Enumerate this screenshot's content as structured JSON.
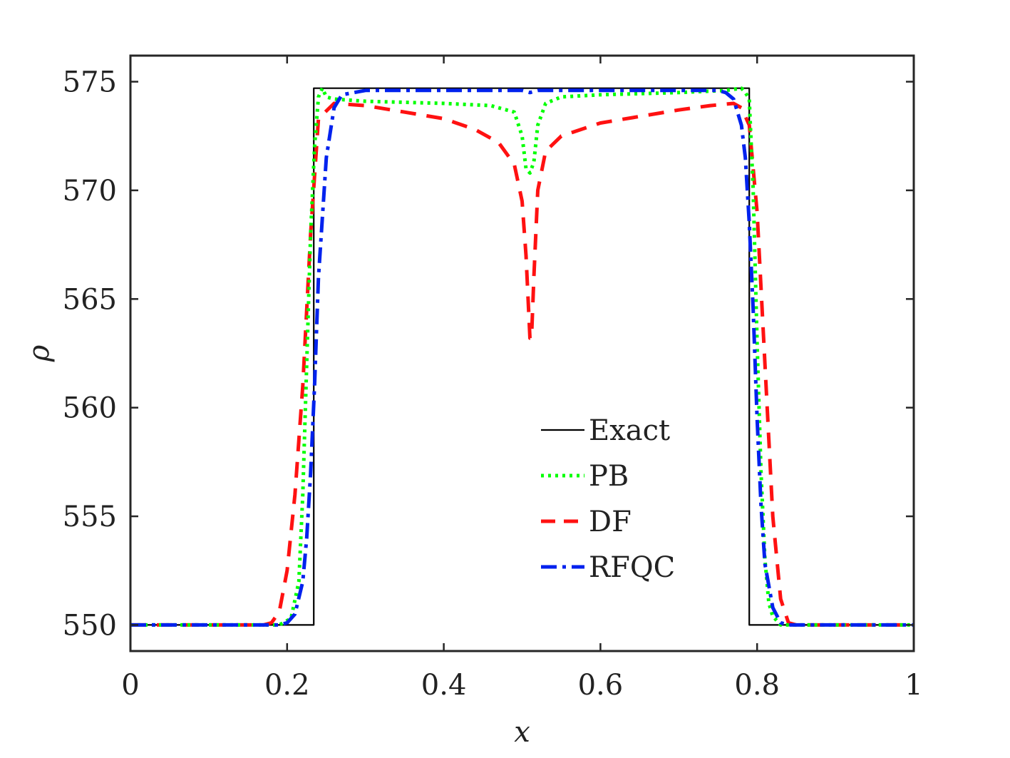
{
  "chart_data": {
    "type": "line",
    "title": "",
    "xlabel": "x",
    "ylabel": "ρ",
    "xlim": [
      0,
      1
    ],
    "ylim": [
      548.8,
      576.2
    ],
    "xticks": [
      0,
      0.2,
      0.4,
      0.6,
      0.8,
      1
    ],
    "xtick_labels": [
      "0",
      "0.2",
      "0.4",
      "0.6",
      "0.8",
      "1"
    ],
    "yticks": [
      550,
      555,
      560,
      565,
      570,
      575
    ],
    "ytick_labels": [
      "550",
      "555",
      "560",
      "565",
      "570",
      "575"
    ],
    "grid": false,
    "legend_position": "center-right",
    "series": [
      {
        "name": "Exact",
        "color": "#000000",
        "style": "solid",
        "x": [
          0,
          0.234,
          0.234,
          0.79,
          0.79,
          1
        ],
        "y": [
          550,
          550,
          574.7,
          574.7,
          550,
          550
        ]
      },
      {
        "name": "PB",
        "color": "#00ff00",
        "style": "dotted",
        "x": [
          0,
          0.19,
          0.205,
          0.215,
          0.22,
          0.225,
          0.23,
          0.235,
          0.24,
          0.245,
          0.25,
          0.26,
          0.3,
          0.4,
          0.46,
          0.49,
          0.5,
          0.505,
          0.51,
          0.515,
          0.52,
          0.53,
          0.55,
          0.6,
          0.7,
          0.76,
          0.78,
          0.785,
          0.79,
          0.795,
          0.8,
          0.805,
          0.81,
          0.815,
          0.82,
          0.83,
          1
        ],
        "y": [
          550,
          550,
          550.3,
          552,
          556,
          562,
          568,
          572,
          574.3,
          574.7,
          574.3,
          574.2,
          574.1,
          574.0,
          573.9,
          573.6,
          572.5,
          571.0,
          570.8,
          571.3,
          573.0,
          574.0,
          574.3,
          574.4,
          574.5,
          574.6,
          574.7,
          574.5,
          574.2,
          570,
          563,
          557,
          553,
          551,
          550.4,
          550,
          550
        ]
      },
      {
        "name": "DF",
        "color": "#ff1111",
        "style": "dashed",
        "x": [
          0,
          0.17,
          0.18,
          0.19,
          0.2,
          0.21,
          0.22,
          0.23,
          0.24,
          0.26,
          0.3,
          0.35,
          0.4,
          0.44,
          0.47,
          0.49,
          0.5,
          0.505,
          0.51,
          0.512,
          0.515,
          0.52,
          0.53,
          0.55,
          0.6,
          0.65,
          0.7,
          0.74,
          0.77,
          0.78,
          0.79,
          0.8,
          0.81,
          0.82,
          0.83,
          0.84,
          0.85,
          0.86,
          1
        ],
        "y": [
          550,
          550,
          550.1,
          550.6,
          552.5,
          556,
          561,
          568,
          573.3,
          574.0,
          573.9,
          573.6,
          573.3,
          572.8,
          572.2,
          571.2,
          569.5,
          567,
          563.2,
          563.2,
          566,
          570,
          571.8,
          572.5,
          573.1,
          573.4,
          573.7,
          573.9,
          574.0,
          573.8,
          573,
          569,
          562,
          555,
          551.2,
          550.1,
          550,
          550,
          550
        ]
      },
      {
        "name": "RFQC",
        "color": "#0022ee",
        "style": "dashdot",
        "x": [
          0,
          0.19,
          0.2,
          0.21,
          0.22,
          0.225,
          0.23,
          0.235,
          0.24,
          0.25,
          0.26,
          0.27,
          0.3,
          0.4,
          0.5,
          0.51,
          0.52,
          0.6,
          0.7,
          0.75,
          0.76,
          0.77,
          0.78,
          0.785,
          0.79,
          0.795,
          0.8,
          0.805,
          0.81,
          0.82,
          0.83,
          0.84,
          1
        ],
        "y": [
          550,
          550,
          550.1,
          550.5,
          552,
          554,
          557,
          561,
          566,
          571.5,
          573.8,
          574.4,
          574.6,
          574.6,
          574.6,
          574.5,
          574.6,
          574.6,
          574.6,
          574.6,
          574.5,
          574.2,
          573,
          571.5,
          568.5,
          564.5,
          559.5,
          555.5,
          552.8,
          550.8,
          550.1,
          550,
          550
        ]
      }
    ]
  }
}
